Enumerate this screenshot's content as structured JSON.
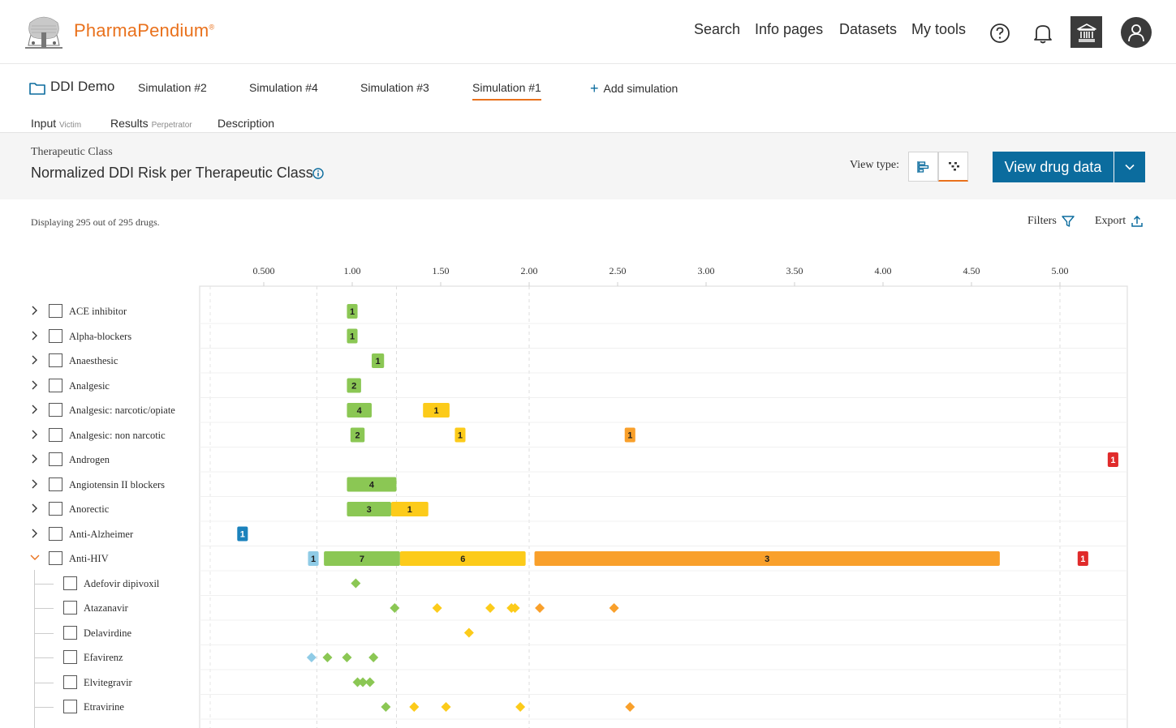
{
  "header": {
    "brand": "PharmaPendium",
    "brand_mark": "®",
    "nav": [
      {
        "label": "Search"
      },
      {
        "label": "Info pages"
      },
      {
        "label": "Datasets"
      },
      {
        "label": "My tools"
      }
    ],
    "icons": [
      "help-icon",
      "bell-icon",
      "institution-icon",
      "user-icon"
    ]
  },
  "simulation_bar": {
    "project": "DDI Demo",
    "tabs": [
      "Simulation #2",
      "Simulation #4",
      "Simulation #3",
      "Simulation #1"
    ],
    "active_tab": "Simulation #1",
    "add_label": "Add simulation"
  },
  "subtabs": [
    {
      "label": "Input",
      "sub": "Victim"
    },
    {
      "label": "Results",
      "sub": "Perpetrator"
    },
    {
      "label": "Description",
      "sub": ""
    }
  ],
  "panel": {
    "class_label": "Therapeutic Class",
    "title": "Normalized DDI Risk per Therapeutic Class",
    "view_type_label": "View type:",
    "view_button": "View drug data"
  },
  "toolbar": {
    "display_count": "Displaying 295 out of 295 drugs.",
    "filters": "Filters",
    "export": "Export"
  },
  "chart_data": {
    "type": "range-bar",
    "x_ticks": [
      "0.500",
      "1.00",
      "1.50",
      "2.00",
      "2.50",
      "3.00",
      "3.50",
      "4.00",
      "4.50",
      "5.00"
    ],
    "xlim": [
      0.5,
      5.0
    ],
    "grid_lines": [
      0.8,
      1.25,
      2.0,
      5.0
    ],
    "colors": {
      "blue": "#1b82bc",
      "lightblue": "#8fcbe6",
      "green": "#8bc754",
      "yellow": "#fccb1a",
      "orange": "#f9a02b",
      "red": "#e02b2b"
    },
    "rows": [
      {
        "label": "ACE inhibitor",
        "level": 0,
        "expanded": false,
        "bars": [
          {
            "from": 0.97,
            "to": 1.03,
            "count": "1",
            "color": "green"
          }
        ]
      },
      {
        "label": "Alpha-blockers",
        "level": 0,
        "expanded": false,
        "bars": [
          {
            "from": 0.97,
            "to": 1.03,
            "count": "1",
            "color": "green"
          }
        ]
      },
      {
        "label": "Anaesthesic",
        "level": 0,
        "expanded": false,
        "bars": [
          {
            "from": 1.11,
            "to": 1.18,
            "count": "1",
            "color": "green"
          }
        ]
      },
      {
        "label": "Analgesic",
        "level": 0,
        "expanded": false,
        "bars": [
          {
            "from": 0.97,
            "to": 1.05,
            "count": "2",
            "color": "green"
          }
        ]
      },
      {
        "label": "Analgesic: narcotic/opiate",
        "level": 0,
        "expanded": false,
        "bars": [
          {
            "from": 0.97,
            "to": 1.11,
            "count": "4",
            "color": "green"
          },
          {
            "from": 1.4,
            "to": 1.55,
            "count": "1",
            "color": "yellow"
          }
        ]
      },
      {
        "label": "Analgesic: non narcotic",
        "level": 0,
        "expanded": false,
        "bars": [
          {
            "from": 0.99,
            "to": 1.07,
            "count": "2",
            "color": "green"
          },
          {
            "from": 1.58,
            "to": 1.64,
            "count": "1",
            "color": "yellow"
          },
          {
            "from": 2.54,
            "to": 2.6,
            "count": "1",
            "color": "orange"
          }
        ]
      },
      {
        "label": "Androgen",
        "level": 0,
        "expanded": false,
        "bars": [
          {
            "from": 5.27,
            "to": 5.33,
            "count": "1",
            "color": "red"
          }
        ]
      },
      {
        "label": "Angiotensin II blockers",
        "level": 0,
        "expanded": false,
        "bars": [
          {
            "from": 0.97,
            "to": 1.25,
            "count": "4",
            "color": "green"
          }
        ]
      },
      {
        "label": "Anorectic",
        "level": 0,
        "expanded": false,
        "bars": [
          {
            "from": 0.97,
            "to": 1.22,
            "count": "3",
            "color": "green"
          },
          {
            "from": 1.22,
            "to": 1.43,
            "count": "1",
            "color": "yellow"
          }
        ]
      },
      {
        "label": "Anti-Alzheimer",
        "level": 0,
        "expanded": false,
        "bars": [
          {
            "from": 0.35,
            "to": 0.41,
            "count": "1",
            "color": "blue"
          }
        ]
      },
      {
        "label": "Anti-HIV",
        "level": 0,
        "expanded": true,
        "bars": [
          {
            "from": 0.75,
            "to": 0.81,
            "count": "1",
            "color": "lightblue"
          },
          {
            "from": 0.84,
            "to": 1.27,
            "count": "7",
            "color": "green"
          },
          {
            "from": 1.27,
            "to": 1.98,
            "count": "6",
            "color": "yellow"
          },
          {
            "from": 2.03,
            "to": 4.66,
            "count": "3",
            "color": "orange"
          },
          {
            "from": 5.1,
            "to": 5.16,
            "count": "1",
            "color": "red"
          }
        ]
      },
      {
        "label": "Adefovir dipivoxil",
        "level": 1,
        "points": [
          {
            "x": 1.02,
            "color": "green"
          }
        ]
      },
      {
        "label": "Atazanavir",
        "level": 1,
        "points": [
          {
            "x": 1.24,
            "color": "green"
          },
          {
            "x": 1.48,
            "color": "yellow"
          },
          {
            "x": 1.78,
            "color": "yellow"
          },
          {
            "x": 1.9,
            "color": "yellow"
          },
          {
            "x": 1.92,
            "color": "yellow"
          },
          {
            "x": 2.06,
            "color": "orange"
          },
          {
            "x": 2.48,
            "color": "orange"
          }
        ]
      },
      {
        "label": "Delavirdine",
        "level": 1,
        "points": [
          {
            "x": 1.66,
            "color": "yellow"
          }
        ]
      },
      {
        "label": "Efavirenz",
        "level": 1,
        "points": [
          {
            "x": 0.77,
            "color": "lightblue"
          },
          {
            "x": 0.86,
            "color": "green"
          },
          {
            "x": 0.97,
            "color": "green"
          },
          {
            "x": 1.12,
            "color": "green"
          }
        ]
      },
      {
        "label": "Elvitegravir",
        "level": 1,
        "points": [
          {
            "x": 1.03,
            "color": "green"
          },
          {
            "x": 1.06,
            "color": "green"
          },
          {
            "x": 1.1,
            "color": "green"
          }
        ]
      },
      {
        "label": "Etravirine",
        "level": 1,
        "points": [
          {
            "x": 1.19,
            "color": "green"
          },
          {
            "x": 1.35,
            "color": "yellow"
          },
          {
            "x": 1.53,
            "color": "yellow"
          },
          {
            "x": 1.95,
            "color": "yellow"
          },
          {
            "x": 2.57,
            "color": "orange"
          }
        ]
      }
    ]
  }
}
